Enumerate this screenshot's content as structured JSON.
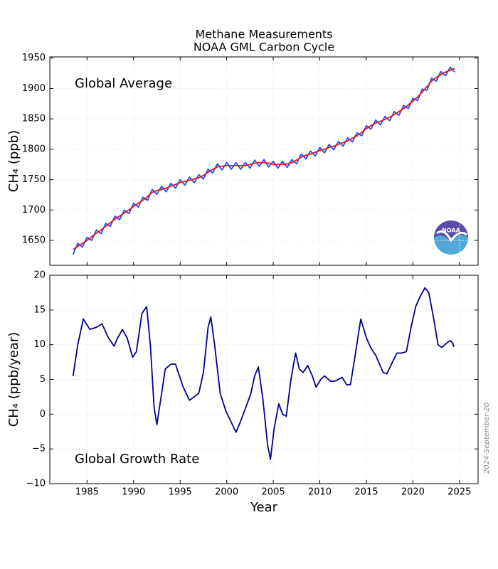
{
  "title": "Methane Measurements",
  "subtitle": "NOAA GML Carbon Cycle",
  "xlabel": "Year",
  "date_stamp": "2024-September-20",
  "logo_text": "NOAA",
  "chart_data": [
    {
      "type": "line",
      "ylabel": "CH₄ (ppb)",
      "annotation": "Global Average",
      "grid": true,
      "show_xtick_labels": false,
      "xlim": [
        1981,
        2027
      ],
      "xticks": [
        1985,
        1990,
        1995,
        2000,
        2005,
        2010,
        2015,
        2020,
        2025
      ],
      "ylim": [
        1609,
        1952
      ],
      "yticks": [
        1650,
        1700,
        1750,
        1800,
        1850,
        1900,
        1950
      ],
      "x": [
        1983.5,
        1984,
        1984.5,
        1985,
        1985.5,
        1986,
        1986.5,
        1987,
        1987.5,
        1988,
        1988.5,
        1989,
        1989.5,
        1990,
        1990.5,
        1991,
        1991.5,
        1992,
        1992.5,
        1993,
        1993.5,
        1994,
        1994.5,
        1995,
        1995.5,
        1996,
        1996.5,
        1997,
        1997.5,
        1998,
        1998.5,
        1999,
        1999.5,
        2000,
        2000.5,
        2001,
        2001.5,
        2002,
        2002.5,
        2003,
        2003.5,
        2004,
        2004.5,
        2005,
        2005.5,
        2006,
        2006.5,
        2007,
        2007.5,
        2008,
        2008.5,
        2009,
        2009.5,
        2010,
        2010.5,
        2011,
        2011.5,
        2012,
        2012.5,
        2013,
        2013.5,
        2014,
        2014.5,
        2015,
        2015.5,
        2016,
        2016.5,
        2017,
        2017.5,
        2018,
        2018.5,
        2019,
        2019.5,
        2020,
        2020.5,
        2021,
        2021.5,
        2022,
        2022.5,
        2023,
        2023.5,
        2024,
        2024.5
      ],
      "series": [
        {
          "color": "#1a4ff0",
          "values": [
            1627,
            1645,
            1639,
            1655,
            1650,
            1667,
            1661,
            1678,
            1673,
            1690,
            1684,
            1700,
            1694,
            1711,
            1705,
            1721,
            1716,
            1734,
            1726,
            1739,
            1730,
            1744,
            1736,
            1750,
            1741,
            1754,
            1745,
            1758,
            1751,
            1767,
            1761,
            1776,
            1766,
            1778,
            1767,
            1778,
            1767,
            1778,
            1769,
            1782,
            1772,
            1783,
            1771,
            1780,
            1769,
            1780,
            1770,
            1783,
            1776,
            1792,
            1784,
            1797,
            1789,
            1803,
            1794,
            1808,
            1799,
            1813,
            1805,
            1819,
            1812,
            1827,
            1822,
            1839,
            1833,
            1848,
            1840,
            1854,
            1847,
            1862,
            1856,
            1872,
            1867,
            1884,
            1880,
            1899,
            1897,
            1917,
            1912,
            1928,
            1921,
            1935,
            1927
          ]
        },
        {
          "color": "#e8141e",
          "values": [
            1635,
            1640,
            1645,
            1650,
            1656,
            1662,
            1667,
            1673,
            1679,
            1685,
            1690,
            1695,
            1700,
            1706,
            1711,
            1716,
            1722,
            1729,
            1732,
            1734,
            1736,
            1739,
            1742,
            1745,
            1747,
            1749,
            1751,
            1753,
            1757,
            1762,
            1767,
            1771,
            1772,
            1773,
            1773,
            1773,
            1773,
            1773,
            1775,
            1777,
            1778,
            1778,
            1777,
            1775,
            1775,
            1775,
            1776,
            1778,
            1782,
            1787,
            1790,
            1792,
            1795,
            1798,
            1800,
            1803,
            1805,
            1808,
            1811,
            1814,
            1818,
            1822,
            1828,
            1834,
            1839,
            1843,
            1846,
            1849,
            1853,
            1857,
            1862,
            1867,
            1873,
            1879,
            1886,
            1894,
            1903,
            1912,
            1918,
            1923,
            1927,
            1930,
            1933
          ]
        }
      ]
    },
    {
      "type": "line",
      "ylabel": "CH₄ (ppb/year)",
      "annotation": "Global Growth Rate",
      "grid": true,
      "show_xtick_labels": true,
      "xlim": [
        1981,
        2027
      ],
      "xticks": [
        1985,
        1990,
        1995,
        2000,
        2005,
        2010,
        2015,
        2020,
        2025
      ],
      "ylim": [
        -10,
        20
      ],
      "yticks": [
        {
          "value": -10,
          "label": "−10"
        },
        {
          "value": -5,
          "label": "−5"
        },
        0,
        5,
        10,
        15,
        20
      ],
      "x": [
        1983.5,
        1984,
        1984.6,
        1985.3,
        1986,
        1986.6,
        1987.3,
        1987.9,
        1988.3,
        1988.8,
        1989.3,
        1989.9,
        1990.3,
        1990.9,
        1991.4,
        1991.8,
        1992.2,
        1992.5,
        1992.9,
        1993.4,
        1994,
        1994.5,
        1995.3,
        1996,
        1996.5,
        1997,
        1997.5,
        1998,
        1998.3,
        1998.7,
        1999.3,
        1999.9,
        2000.5,
        2001,
        2001.5,
        2002,
        2002.6,
        2003,
        2003.4,
        2003.9,
        2004.4,
        2004.7,
        2005.1,
        2005.6,
        2006,
        2006.4,
        2006.9,
        2007.4,
        2007.8,
        2008.2,
        2008.7,
        2009.2,
        2009.6,
        2010.1,
        2010.5,
        2011.2,
        2011.7,
        2012.4,
        2012.9,
        2013.3,
        2013.8,
        2014.4,
        2015,
        2015.5,
        2016,
        2016.8,
        2017.2,
        2017.8,
        2018.3,
        2018.8,
        2019.3,
        2019.8,
        2020.3,
        2020.8,
        2021.3,
        2021.7,
        2022.2,
        2022.7,
        2023.1,
        2023.6,
        2024,
        2024.3,
        2024.4
      ],
      "series": [
        {
          "color": "#00008b",
          "values": [
            5.5,
            10,
            13.7,
            12.2,
            12.5,
            13,
            11,
            9.8,
            11,
            12.2,
            11,
            8.2,
            9,
            14.5,
            15.5,
            10,
            1,
            -1.5,
            2,
            6.5,
            7.2,
            7.2,
            4,
            2,
            2.5,
            3,
            6,
            12.5,
            14,
            10,
            3,
            0.5,
            -1.2,
            -2.6,
            -1,
            0.8,
            3,
            5.5,
            6.8,
            2,
            -4.5,
            -6.5,
            -2,
            1.5,
            0,
            -0.3,
            5,
            8.8,
            6.5,
            6,
            7,
            5.5,
            3.9,
            5,
            5.5,
            4.7,
            4.8,
            5.3,
            4.2,
            4.3,
            8.5,
            13.7,
            11,
            9.5,
            8.5,
            6,
            5.8,
            7.5,
            8.8,
            8.8,
            9,
            12.5,
            15.5,
            17,
            18.2,
            17.5,
            14,
            10,
            9.6,
            10.2,
            10.6,
            10.2,
            9.7
          ]
        }
      ]
    }
  ]
}
